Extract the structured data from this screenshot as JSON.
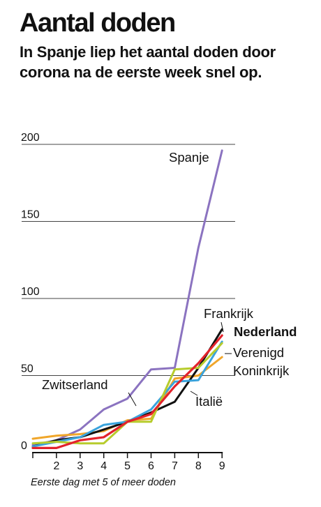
{
  "header": {
    "title": "Aantal doden",
    "subtitle": "In Spanje liep het aantal doden door corona na de eerste week snel op."
  },
  "chart_data": {
    "type": "line",
    "title": "Aantal doden",
    "subtitle": "In Spanje liep het aantal doden door corona na de eerste week snel op.",
    "xlabel": "Eerste dag met 5 of meer doden",
    "ylabel": "",
    "x": [
      1,
      2,
      3,
      4,
      5,
      6,
      7,
      8,
      9
    ],
    "x_tick_labels": [
      "2",
      "3",
      "4",
      "5",
      "6",
      "7",
      "8",
      "9"
    ],
    "y_ticks": [
      0,
      50,
      100,
      150,
      200
    ],
    "ylim": [
      0,
      200
    ],
    "grid": true,
    "legend": "none (series labeled directly)",
    "series": [
      {
        "name": "Spanje",
        "color": "#8b73c0",
        "bold": false,
        "values": [
          5,
          8,
          15,
          28,
          35,
          54,
          55,
          133,
          196
        ]
      },
      {
        "name": "Zwitserland",
        "color": "#f0a62a",
        "bold": false,
        "values": [
          9,
          11,
          12,
          14,
          21,
          22,
          48,
          50,
          62
        ]
      },
      {
        "name": "Italië",
        "color": "#111111",
        "bold": false,
        "values": [
          4,
          8,
          10,
          15,
          20,
          26,
          33,
          55,
          80
        ]
      },
      {
        "name": "Frankrijk",
        "color": "#3aa3dc",
        "bold": false,
        "values": [
          4,
          7,
          10,
          18,
          20,
          28,
          46,
          47,
          72
        ]
      },
      {
        "name": "Verenigd\nKoninkrijk",
        "color": "#b7cc2c",
        "bold": false,
        "values": [
          6,
          7,
          6,
          6,
          20,
          20,
          54,
          55,
          71
        ]
      },
      {
        "name": "Nederland",
        "color": "#e3232c",
        "bold": true,
        "values": [
          3,
          3,
          8,
          10,
          20,
          25,
          43,
          58,
          76
        ]
      }
    ],
    "annotations": [
      {
        "text": "Spanje",
        "series": "Spanje"
      },
      {
        "text": "Frankrijk",
        "series": "Frankrijk"
      },
      {
        "text": "Nederland",
        "series": "Nederland"
      },
      {
        "text": "Verenigd",
        "series": "Verenigd Koninkrijk"
      },
      {
        "text": "Koninkrijk",
        "series": "Verenigd Koninkrijk"
      },
      {
        "text": "Zwitserland",
        "series": "Zwitserland"
      },
      {
        "text": "Italië",
        "series": "Italië"
      }
    ]
  }
}
